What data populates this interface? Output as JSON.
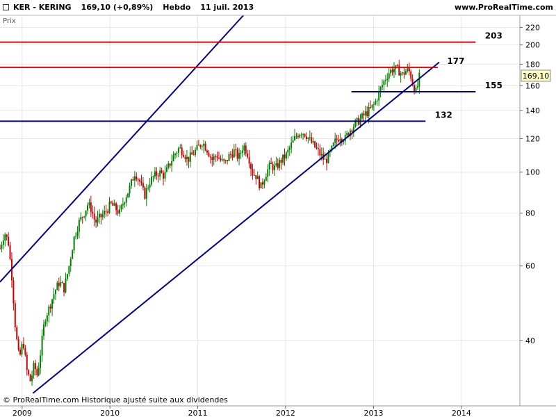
{
  "header": {
    "symbol": "KER - KERING",
    "price_change": "169,10 (+0,89%)",
    "period": "Hebdo",
    "date": "11 juil. 2013",
    "site": "www.ProRealTime.com"
  },
  "panel_label": "Prix",
  "footer": "© ProRealTime.com  Historique ajusté suite aux dividendes",
  "colors": {
    "up": "#008000",
    "down": "#cc0000",
    "channel": "#00008b",
    "resistance": "#e00000",
    "grid": "#e6e6e6",
    "last_price_box": "#ffffc0"
  },
  "chart_data": {
    "type": "candlestick",
    "y_scale": "log",
    "ylim": [
      28,
      235
    ],
    "xlim": [
      "2008-10-01",
      "2014-09-01"
    ],
    "y_ticks": [
      40,
      60,
      80,
      100,
      120,
      140,
      160,
      180,
      200,
      220
    ],
    "y_tick_labels": [
      "40",
      "60",
      "80",
      "100",
      "120",
      "140",
      "160",
      "180",
      "200",
      "220"
    ],
    "x_ticks": [
      "2009-01-01",
      "2010-01-01",
      "2011-01-01",
      "2012-01-01",
      "2013-01-01",
      "2014-01-01"
    ],
    "x_tick_labels": [
      "2009",
      "2010",
      "2011",
      "2012",
      "2013",
      "2014"
    ],
    "last_price": {
      "value": 169.1,
      "label": "169,10"
    },
    "price_path": [
      [
        "2008-10-01",
        66
      ],
      [
        "2008-10-20",
        72
      ],
      [
        "2008-11-05",
        68
      ],
      [
        "2008-11-20",
        56
      ],
      [
        "2008-12-05",
        42
      ],
      [
        "2008-12-20",
        36
      ],
      [
        "2009-01-05",
        40
      ],
      [
        "2009-01-20",
        34
      ],
      [
        "2009-02-05",
        32
      ],
      [
        "2009-02-20",
        35
      ],
      [
        "2009-03-05",
        33
      ],
      [
        "2009-03-20",
        38
      ],
      [
        "2009-04-05",
        45
      ],
      [
        "2009-04-25",
        48
      ],
      [
        "2009-05-15",
        52
      ],
      [
        "2009-06-05",
        55
      ],
      [
        "2009-06-25",
        53
      ],
      [
        "2009-07-15",
        60
      ],
      [
        "2009-08-05",
        70
      ],
      [
        "2009-08-25",
        76
      ],
      [
        "2009-09-15",
        80
      ],
      [
        "2009-10-01",
        84
      ],
      [
        "2009-10-15",
        82
      ],
      [
        "2009-11-01",
        76
      ],
      [
        "2009-11-20",
        78
      ],
      [
        "2009-12-10",
        80
      ],
      [
        "2010-01-05",
        84
      ],
      [
        "2010-01-25",
        82
      ],
      [
        "2010-02-10",
        80
      ],
      [
        "2010-03-01",
        86
      ],
      [
        "2010-03-25",
        92
      ],
      [
        "2010-04-15",
        100
      ],
      [
        "2010-05-05",
        95
      ],
      [
        "2010-05-25",
        88
      ],
      [
        "2010-06-15",
        95
      ],
      [
        "2010-07-05",
        98
      ],
      [
        "2010-07-25",
        100
      ],
      [
        "2010-08-15",
        98
      ],
      [
        "2010-09-05",
        104
      ],
      [
        "2010-09-25",
        110
      ],
      [
        "2010-10-15",
        114
      ],
      [
        "2010-11-01",
        112
      ],
      [
        "2010-11-20",
        107
      ],
      [
        "2010-12-10",
        110
      ],
      [
        "2011-01-01",
        114
      ],
      [
        "2011-01-20",
        118
      ],
      [
        "2011-02-10",
        113
      ],
      [
        "2011-03-01",
        107
      ],
      [
        "2011-03-20",
        110
      ],
      [
        "2011-04-10",
        106
      ],
      [
        "2011-04-25",
        105
      ],
      [
        "2011-05-10",
        109
      ],
      [
        "2011-06-01",
        112
      ],
      [
        "2011-06-20",
        108
      ],
      [
        "2011-07-10",
        116
      ],
      [
        "2011-07-30",
        110
      ],
      [
        "2011-08-15",
        100
      ],
      [
        "2011-09-01",
        98
      ],
      [
        "2011-09-20",
        92
      ],
      [
        "2011-10-10",
        99
      ],
      [
        "2011-10-30",
        104
      ],
      [
        "2011-11-20",
        102
      ],
      [
        "2011-12-10",
        106
      ],
      [
        "2012-01-05",
        110
      ],
      [
        "2012-01-25",
        116
      ],
      [
        "2012-02-15",
        122
      ],
      [
        "2012-03-05",
        125
      ],
      [
        "2012-03-25",
        123
      ],
      [
        "2012-04-15",
        118
      ],
      [
        "2012-05-05",
        114
      ],
      [
        "2012-05-25",
        110
      ],
      [
        "2012-06-15",
        106
      ],
      [
        "2012-07-05",
        111
      ],
      [
        "2012-07-25",
        118
      ],
      [
        "2012-08-15",
        122
      ],
      [
        "2012-09-05",
        120
      ],
      [
        "2012-09-25",
        126
      ],
      [
        "2012-10-15",
        130
      ],
      [
        "2012-11-05",
        133
      ],
      [
        "2012-11-25",
        137
      ],
      [
        "2012-12-15",
        140
      ],
      [
        "2013-01-05",
        145
      ],
      [
        "2013-01-25",
        155
      ],
      [
        "2013-02-15",
        165
      ],
      [
        "2013-03-05",
        172
      ],
      [
        "2013-03-25",
        176
      ],
      [
        "2013-04-15",
        174
      ],
      [
        "2013-05-01",
        170
      ],
      [
        "2013-05-20",
        175
      ],
      [
        "2013-06-01",
        172
      ],
      [
        "2013-06-15",
        160
      ],
      [
        "2013-06-28",
        154
      ],
      [
        "2013-07-11",
        169.1
      ]
    ],
    "channel_lines": [
      {
        "name": "upper",
        "from": [
          "2008-10-01",
          55
        ],
        "to": [
          "2011-07-10",
          235
        ]
      },
      {
        "name": "lower",
        "from": [
          "2009-02-15",
          30
        ],
        "to": [
          "2013-10-01",
          182
        ]
      }
    ],
    "horizontal_levels": [
      {
        "value": 203,
        "label": "203",
        "color": "resistance",
        "from": "2008-10-01",
        "to": "2014-03-01"
      },
      {
        "value": 177,
        "label": "177",
        "color": "resistance",
        "from": "2008-10-01",
        "to": "2013-09-25"
      },
      {
        "value": 155,
        "label": "155",
        "color": "channel",
        "from": "2012-10-01",
        "to": "2014-03-01"
      },
      {
        "value": 132,
        "label": "132",
        "color": "channel",
        "from": "2008-10-01",
        "to": "2013-08-05"
      }
    ]
  }
}
